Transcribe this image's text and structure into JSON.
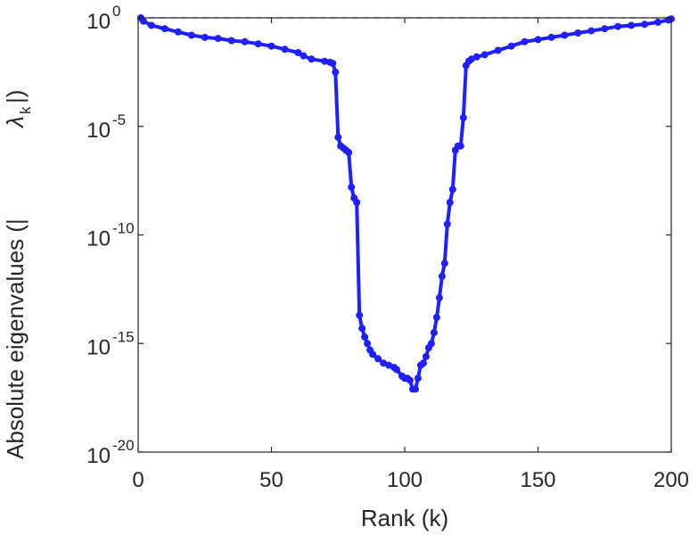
{
  "chart_data": {
    "type": "line",
    "title": "",
    "xlabel": "Rank (k)",
    "ylabel": "Absolute eigenvalues (|",
    "ylabel_symbol": "λ",
    "ylabel_subscript": "k",
    "ylabel_close": "|)",
    "xlim": [
      0,
      200
    ],
    "ylim_log10": [
      -20,
      0
    ],
    "yscale": "log",
    "xticks": [
      "0",
      "50",
      "100",
      "150",
      "200"
    ],
    "yticks": [
      {
        "base": "10",
        "exp": "0"
      },
      {
        "base": "10",
        "exp": "-5"
      },
      {
        "base": "10",
        "exp": "-10"
      },
      {
        "base": "10",
        "exp": "-15"
      },
      {
        "base": "10",
        "exp": "-20"
      }
    ],
    "grid": false,
    "colors": {
      "series": "#1f1fff",
      "reference": "#404040"
    },
    "reference_line_log10": 0,
    "series": [
      {
        "x": [
          1,
          2,
          5,
          10,
          15,
          20,
          25,
          30,
          35,
          40,
          45,
          50,
          55,
          60,
          62,
          65,
          70,
          72,
          73,
          74,
          75,
          76,
          77,
          78,
          79,
          80,
          81,
          82,
          83,
          84,
          85,
          86,
          87,
          88,
          90,
          92,
          94,
          96,
          97,
          99,
          100,
          101,
          102,
          103,
          104,
          105,
          106,
          107,
          108,
          109,
          110,
          111,
          112,
          113,
          114,
          115,
          116,
          117,
          118,
          119,
          120,
          121,
          122,
          123,
          124,
          125,
          127,
          130,
          135,
          140,
          145,
          150,
          155,
          160,
          165,
          170,
          175,
          180,
          185,
          190,
          195,
          199,
          200
        ],
        "y_log10": [
          0,
          -0.15,
          -0.35,
          -0.5,
          -0.65,
          -0.8,
          -0.9,
          -0.95,
          -1.05,
          -1.1,
          -1.2,
          -1.3,
          -1.45,
          -1.6,
          -1.75,
          -1.9,
          -2.0,
          -2.05,
          -2.1,
          -2.5,
          -5.5,
          -5.9,
          -6.0,
          -6.1,
          -6.2,
          -7.8,
          -8.3,
          -8.5,
          -13.7,
          -14.3,
          -14.7,
          -15.0,
          -15.3,
          -15.5,
          -15.7,
          -15.9,
          -16.0,
          -16.1,
          -16.2,
          -16.5,
          -16.6,
          -16.6,
          -16.7,
          -17.1,
          -17.1,
          -16.6,
          -16.0,
          -15.9,
          -15.6,
          -15.2,
          -15.0,
          -14.5,
          -13.8,
          -12.9,
          -11.9,
          -11.3,
          -9.5,
          -8.5,
          -7.9,
          -6.1,
          -5.9,
          -5.9,
          -4.6,
          -2.2,
          -2.0,
          -1.9,
          -1.8,
          -1.7,
          -1.5,
          -1.3,
          -1.1,
          -1.0,
          -0.9,
          -0.8,
          -0.7,
          -0.6,
          -0.5,
          -0.4,
          -0.35,
          -0.3,
          -0.2,
          -0.1,
          -0.05
        ]
      }
    ]
  }
}
